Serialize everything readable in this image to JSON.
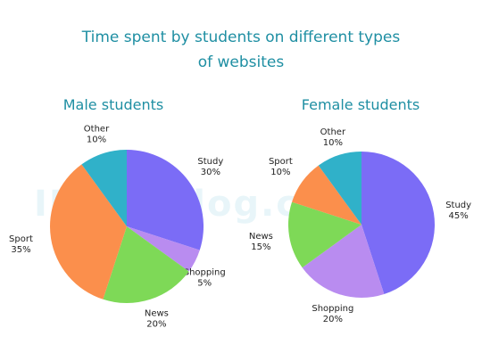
{
  "title_line1": "Time spent by students on different types",
  "title_line2": "of websites",
  "watermark": "IELTS-Blog.com",
  "chart_data": [
    {
      "type": "pie",
      "title": "Male students",
      "slices": [
        {
          "label": "Study",
          "value": 30,
          "pct": "30%",
          "color": "#7b6cf6"
        },
        {
          "label": "Shopping",
          "value": 5,
          "pct": "5%",
          "color": "#b98cf0"
        },
        {
          "label": "News",
          "value": 20,
          "pct": "20%",
          "color": "#7ed957"
        },
        {
          "label": "Sport",
          "value": 35,
          "pct": "35%",
          "color": "#fb8f4c"
        },
        {
          "label": "Other",
          "value": 10,
          "pct": "10%",
          "color": "#30b1c9"
        }
      ]
    },
    {
      "type": "pie",
      "title": "Female students",
      "slices": [
        {
          "label": "Study",
          "value": 45,
          "pct": "45%",
          "color": "#7b6cf6"
        },
        {
          "label": "Shopping",
          "value": 20,
          "pct": "20%",
          "color": "#b98cf0"
        },
        {
          "label": "News",
          "value": 15,
          "pct": "15%",
          "color": "#7ed957"
        },
        {
          "label": "Sport",
          "value": 10,
          "pct": "10%",
          "color": "#fb8f4c"
        },
        {
          "label": "Other",
          "value": 10,
          "pct": "10%",
          "color": "#30b1c9"
        }
      ]
    }
  ]
}
